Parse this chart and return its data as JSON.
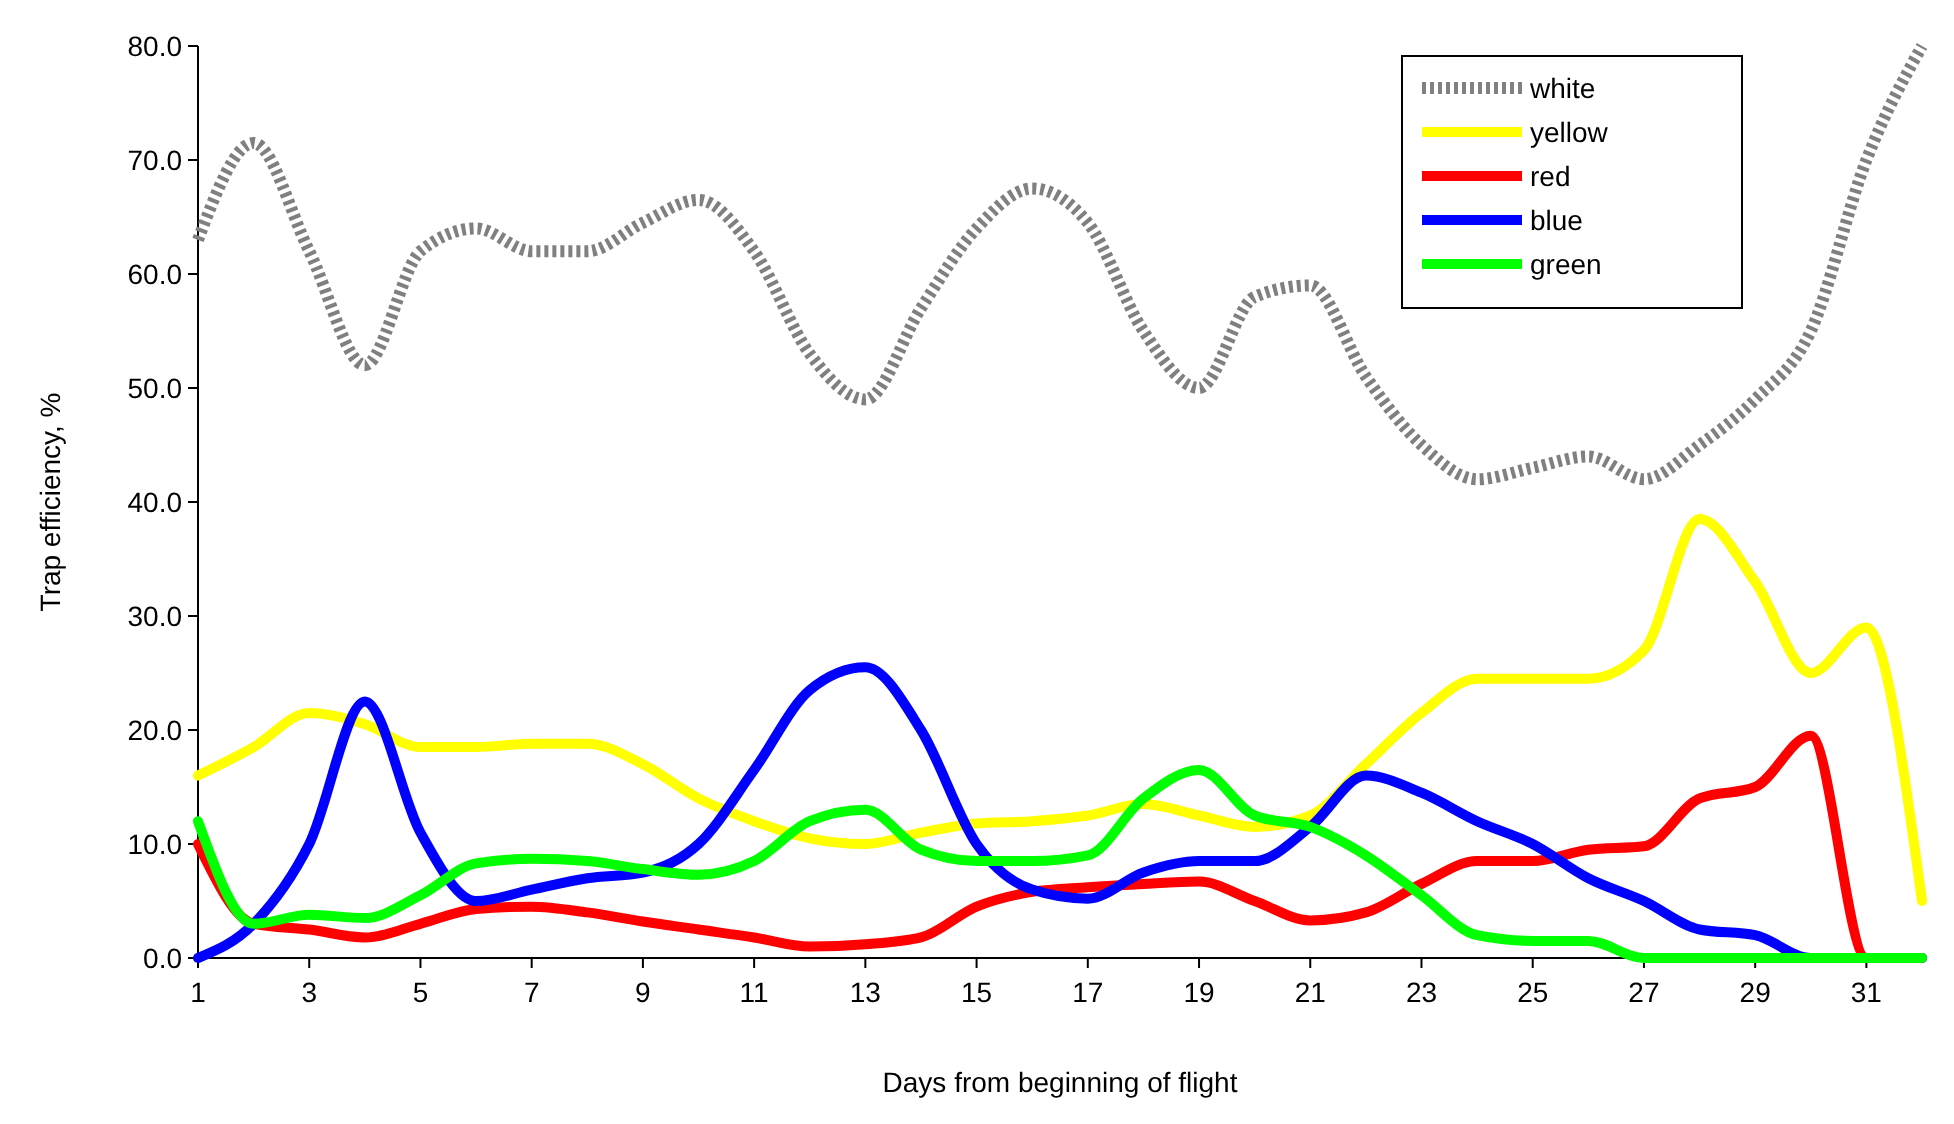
{
  "chart_data": {
    "type": "line",
    "xlabel": "Days from beginning of flight",
    "ylabel": "Trap efficiency, %",
    "x": [
      1,
      2,
      3,
      4,
      5,
      6,
      7,
      8,
      9,
      10,
      11,
      12,
      13,
      14,
      15,
      16,
      17,
      18,
      19,
      20,
      21,
      22,
      23,
      24,
      25,
      26,
      27,
      28,
      29,
      30,
      31,
      32
    ],
    "xlim": [
      1,
      32
    ],
    "xticks": [
      1,
      3,
      5,
      7,
      9,
      11,
      13,
      15,
      17,
      19,
      21,
      23,
      25,
      27,
      29,
      31
    ],
    "ylim": [
      0,
      80
    ],
    "yticks": [
      {
        "value": 0,
        "label": "0.0"
      },
      {
        "value": 10,
        "label": "10.0"
      },
      {
        "value": 20,
        "label": "20.0"
      },
      {
        "value": 30,
        "label": "30.0"
      },
      {
        "value": 40,
        "label": "40.0"
      },
      {
        "value": 50,
        "label": "50.0"
      },
      {
        "value": 60,
        "label": "60.0"
      },
      {
        "value": 70,
        "label": "70.0"
      },
      {
        "value": 80,
        "label": "80.0"
      }
    ],
    "grid": false,
    "legend": "top right",
    "series": [
      {
        "name": "white",
        "color": "#808080",
        "line_style": "dotted",
        "values": [
          63,
          71.5,
          62,
          52,
          62,
          64,
          62,
          62,
          64.5,
          66.5,
          62,
          53,
          49,
          57,
          64,
          67.5,
          64.5,
          55,
          50,
          58,
          59,
          51,
          45,
          42,
          43,
          44,
          42,
          45,
          49,
          55,
          70,
          80
        ]
      },
      {
        "name": "yellow",
        "color": "#ffff00",
        "line_style": "solid",
        "values": [
          16,
          18.5,
          21.5,
          20.5,
          18.5,
          18.5,
          18.8,
          18.8,
          17,
          14,
          12,
          10.5,
          10,
          11,
          11.8,
          12,
          12.5,
          13.5,
          12.5,
          11.5,
          12.5,
          17,
          21.5,
          24.5,
          24.5,
          24.5,
          27,
          38.5,
          33,
          25,
          29,
          5
        ]
      },
      {
        "name": "red",
        "color": "#ff0000",
        "line_style": "solid",
        "values": [
          10,
          3,
          2.5,
          1.8,
          3,
          4.3,
          4.5,
          4,
          3.2,
          2.5,
          1.8,
          1,
          1.2,
          1.8,
          4.5,
          5.8,
          6.2,
          6.5,
          6.7,
          5,
          3.3,
          4,
          6.5,
          8.5,
          8.5,
          9.5,
          9.8,
          14,
          15,
          19.5,
          0,
          0
        ]
      },
      {
        "name": "blue",
        "color": "#0000ff",
        "line_style": "solid",
        "values": [
          0,
          3,
          10,
          22.5,
          11,
          5,
          6,
          7,
          7.5,
          10,
          16.5,
          23.5,
          25.5,
          20,
          10,
          6,
          5.2,
          7.5,
          8.5,
          8.5,
          11.5,
          16,
          14.5,
          12,
          10,
          7,
          5,
          2.5,
          2,
          0,
          0,
          0
        ]
      },
      {
        "name": "green",
        "color": "#00ff00",
        "line_style": "solid",
        "values": [
          12,
          3,
          3.8,
          3.5,
          5.5,
          8.3,
          8.7,
          8.5,
          7.8,
          7.3,
          8.5,
          12,
          13,
          9.5,
          8.5,
          8.5,
          9,
          14,
          16.5,
          12.5,
          11.5,
          9,
          5.5,
          2,
          1.5,
          1.5,
          0,
          0,
          0,
          0,
          0,
          0
        ]
      }
    ]
  }
}
